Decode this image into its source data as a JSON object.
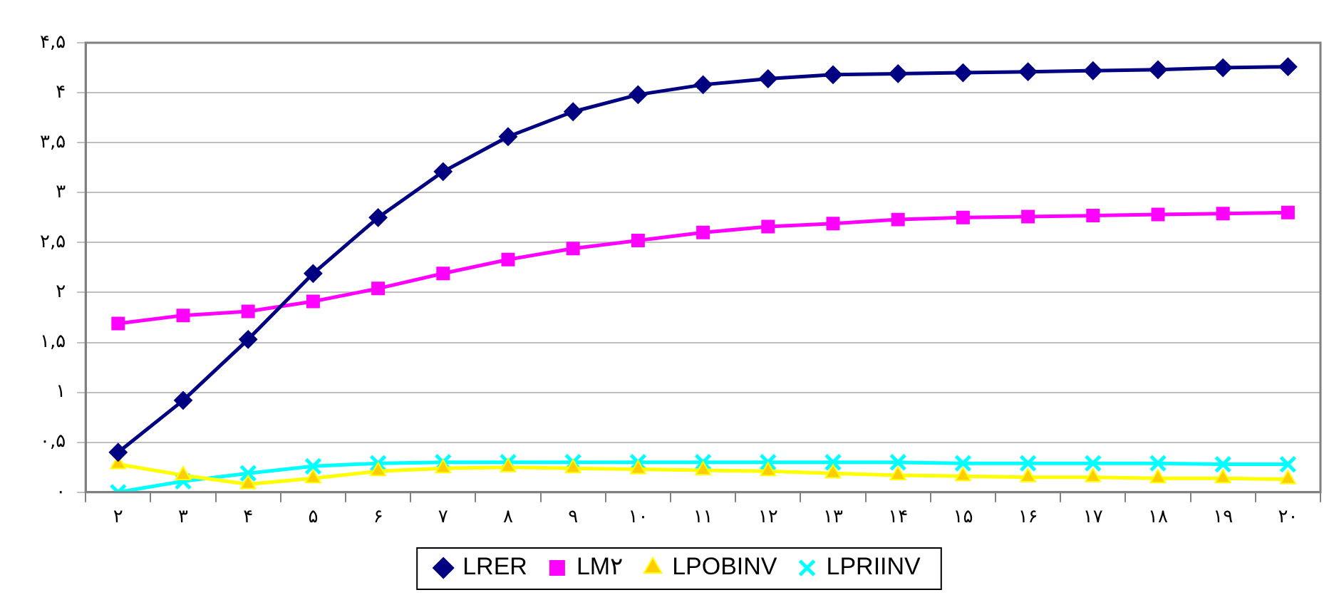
{
  "chart_data": {
    "type": "line",
    "categories": [
      "۲",
      "۳",
      "۴",
      "۵",
      "۶",
      "۷",
      "۸",
      "۹",
      "۱۰",
      "۱۱",
      "۱۲",
      "۱۳",
      "۱۴",
      "۱۵",
      "۱۶",
      "۱۷",
      "۱۸",
      "۱۹",
      "۲۰"
    ],
    "series": [
      {
        "name": "LRER",
        "color": "#000080",
        "marker": "diamond",
        "values": [
          0.4,
          0.92,
          1.53,
          2.19,
          2.75,
          3.21,
          3.56,
          3.81,
          3.98,
          4.08,
          4.14,
          4.18,
          4.19,
          4.2,
          4.21,
          4.22,
          4.23,
          4.25,
          4.26
        ]
      },
      {
        "name": "LM۲",
        "color": "#ff00ff",
        "marker": "square",
        "values": [
          1.69,
          1.77,
          1.81,
          1.91,
          2.04,
          2.19,
          2.33,
          2.44,
          2.52,
          2.6,
          2.66,
          2.69,
          2.73,
          2.75,
          2.76,
          2.77,
          2.78,
          2.79,
          2.8
        ]
      },
      {
        "name": "LPOBINV",
        "color": "#ffff00",
        "marker": "triangle",
        "values": [
          0.28,
          0.17,
          0.08,
          0.14,
          0.21,
          0.24,
          0.25,
          0.24,
          0.23,
          0.22,
          0.21,
          0.19,
          0.17,
          0.16,
          0.15,
          0.15,
          0.14,
          0.14,
          0.13
        ]
      },
      {
        "name": "LPRIINV",
        "color": "#00ffff",
        "marker": "cross",
        "values": [
          0.0,
          0.11,
          0.19,
          0.26,
          0.29,
          0.3,
          0.3,
          0.3,
          0.3,
          0.3,
          0.3,
          0.3,
          0.3,
          0.29,
          0.29,
          0.29,
          0.29,
          0.28,
          0.28
        ]
      }
    ],
    "ylim": [
      0,
      4.5
    ],
    "yticks": [
      {
        "value": 0,
        "label": "۰"
      },
      {
        "value": 0.5,
        "label": "۰,۵"
      },
      {
        "value": 1,
        "label": "۱"
      },
      {
        "value": 1.5,
        "label": "۱,۵"
      },
      {
        "value": 2,
        "label": "۲"
      },
      {
        "value": 2.5,
        "label": "۲,۵"
      },
      {
        "value": 3,
        "label": "۳"
      },
      {
        "value": 3.5,
        "label": "۳,۵"
      },
      {
        "value": 4,
        "label": "۴"
      },
      {
        "value": 4.5,
        "label": "۴,۵"
      }
    ],
    "grid": "y",
    "legend": "bottom",
    "line_style": "solid"
  }
}
